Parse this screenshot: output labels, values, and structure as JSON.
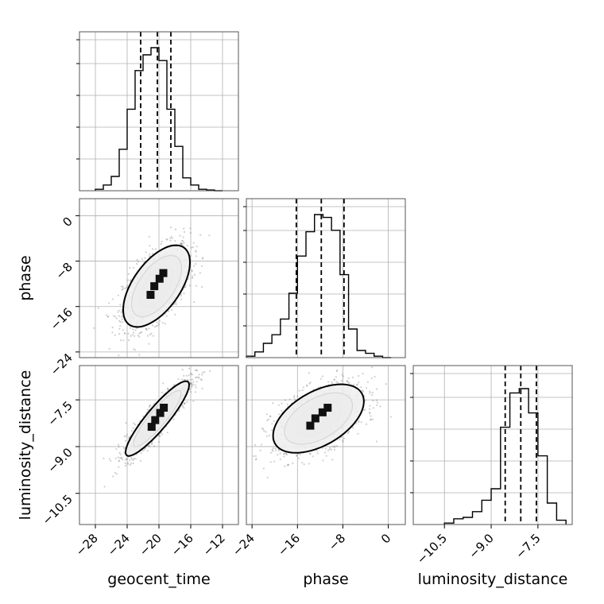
{
  "chart_data": {
    "type": "corner",
    "parameters": [
      "geocent_time",
      "phase",
      "luminosity_distance"
    ],
    "axis_labels": {
      "x": [
        "geocent_time",
        "phase",
        "luminosity_distance"
      ],
      "y": [
        "",
        "phase",
        "luminosity_distance"
      ]
    },
    "grid": true,
    "ranges": {
      "geocent_time": [
        -30,
        -10
      ],
      "phase": [
        -25,
        3
      ],
      "luminosity_distance": [
        -11.5,
        -6.4
      ]
    },
    "ticks": {
      "geocent_time": [
        -28,
        -24,
        -20,
        -16,
        -12
      ],
      "phase": [
        -24,
        -16,
        -8,
        0
      ],
      "luminosity_distance": [
        -10.5,
        -9.0,
        -7.5
      ]
    },
    "tick_labels": {
      "geocent_time": [
        "−28",
        "−24",
        "−20",
        "−16",
        "−12"
      ],
      "phase": [
        "−24",
        "−16",
        "−8",
        "0"
      ],
      "luminosity_distance": [
        "−10.5",
        "−9.0",
        "−7.5"
      ]
    },
    "histograms": [
      {
        "parameter": "geocent_time",
        "bins": [
          -28,
          -27,
          -26,
          -25,
          -24,
          -23,
          -22,
          -21,
          -20,
          -19,
          -18,
          -17,
          -16,
          -15,
          -14,
          -13,
          -12
        ],
        "counts": [
          0.01,
          0.04,
          0.1,
          0.29,
          0.57,
          0.84,
          0.95,
          1.0,
          0.91,
          0.57,
          0.31,
          0.09,
          0.04,
          0.01,
          0.005,
          0.0
        ],
        "quantiles": [
          -22.3,
          -20.2,
          -18.5
        ]
      },
      {
        "parameter": "phase",
        "bins": [
          -25,
          -23.5,
          -22,
          -20.5,
          -19,
          -17.5,
          -16,
          -14.5,
          -13,
          -11.5,
          -10,
          -8.5,
          -7,
          -5.5,
          -4,
          -2.5,
          -1,
          0.5
        ],
        "counts": [
          0.01,
          0.04,
          0.1,
          0.16,
          0.27,
          0.45,
          0.71,
          0.88,
          1.0,
          0.98,
          0.89,
          0.58,
          0.2,
          0.05,
          0.03,
          0.01,
          0.0
        ],
        "quantiles": [
          -16.2,
          -11.8,
          -7.8
        ]
      },
      {
        "parameter": "luminosity_distance",
        "bins": [
          -10.5,
          -10.2,
          -9.9,
          -9.6,
          -9.3,
          -9.0,
          -8.7,
          -8.4,
          -8.1,
          -7.8,
          -7.5,
          -7.2,
          -6.9,
          -6.6
        ],
        "counts": [
          0.01,
          0.04,
          0.05,
          0.09,
          0.17,
          0.25,
          0.68,
          0.92,
          0.95,
          0.78,
          0.48,
          0.15,
          0.03
        ],
        "quantiles": [
          -8.55,
          -8.05,
          -7.55
        ]
      }
    ],
    "joint": [
      {
        "x": "geocent_time",
        "y": "phase",
        "mean": [
          -20.3,
          -12.4
        ],
        "std": [
          2.1,
          3.6
        ],
        "correlation": 0.58,
        "density_levels": [
          0.5,
          1.0,
          1.5,
          2.0
        ]
      },
      {
        "x": "geocent_time",
        "y": "luminosity_distance",
        "mean": [
          -20.2,
          -8.1
        ],
        "std": [
          2.0,
          0.6
        ],
        "correlation": 0.9,
        "density_levels": [
          0.5,
          1.0,
          1.5,
          2.0
        ]
      },
      {
        "x": "phase",
        "y": "luminosity_distance",
        "mean": [
          -12.3,
          -8.1
        ],
        "std": [
          4.0,
          0.55
        ],
        "correlation": 0.5,
        "density_levels": [
          0.5,
          1.0,
          1.5,
          2.0
        ]
      }
    ]
  }
}
